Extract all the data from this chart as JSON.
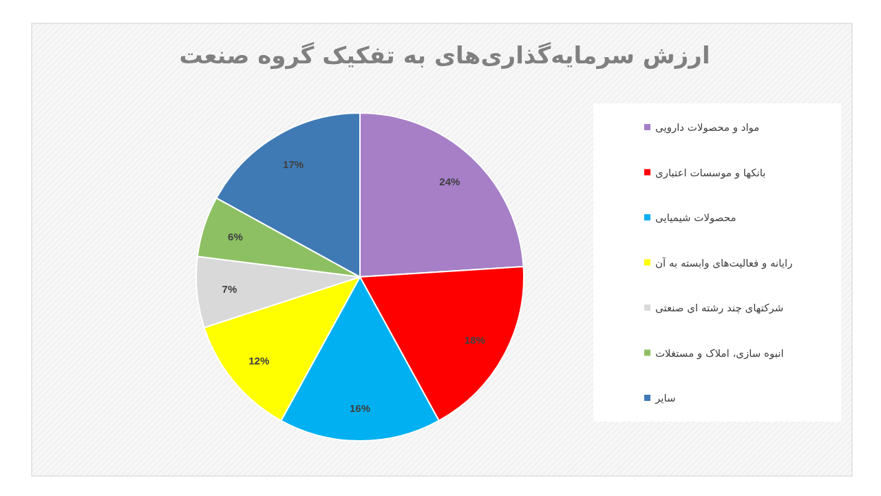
{
  "chart_data": {
    "type": "pie",
    "title": "ارزش سرمایه‌گذاری‌های به تفکیک گروه صنعت",
    "categories": [
      "مواد و محصولات دارویی",
      "بانکها و موسسات اعتباری",
      "محصولات شیمیایی",
      "رایانه و فعالیت‌های وابسته به آن",
      "شرکتهای چند رشته ای صنعتی",
      "انبوه سازی، املاک و مستغلات",
      "سایر"
    ],
    "values": [
      24,
      18,
      16,
      12,
      7,
      6,
      17
    ],
    "colors": [
      "#a67fc7",
      "#ff0000",
      "#00b0f0",
      "#ffff00",
      "#d9d9d9",
      "#8dc063",
      "#3f7ab5"
    ],
    "value_labels": [
      "24%",
      "18%",
      "16%",
      "12%",
      "7%",
      "6%",
      "17%"
    ],
    "legend": "right"
  }
}
